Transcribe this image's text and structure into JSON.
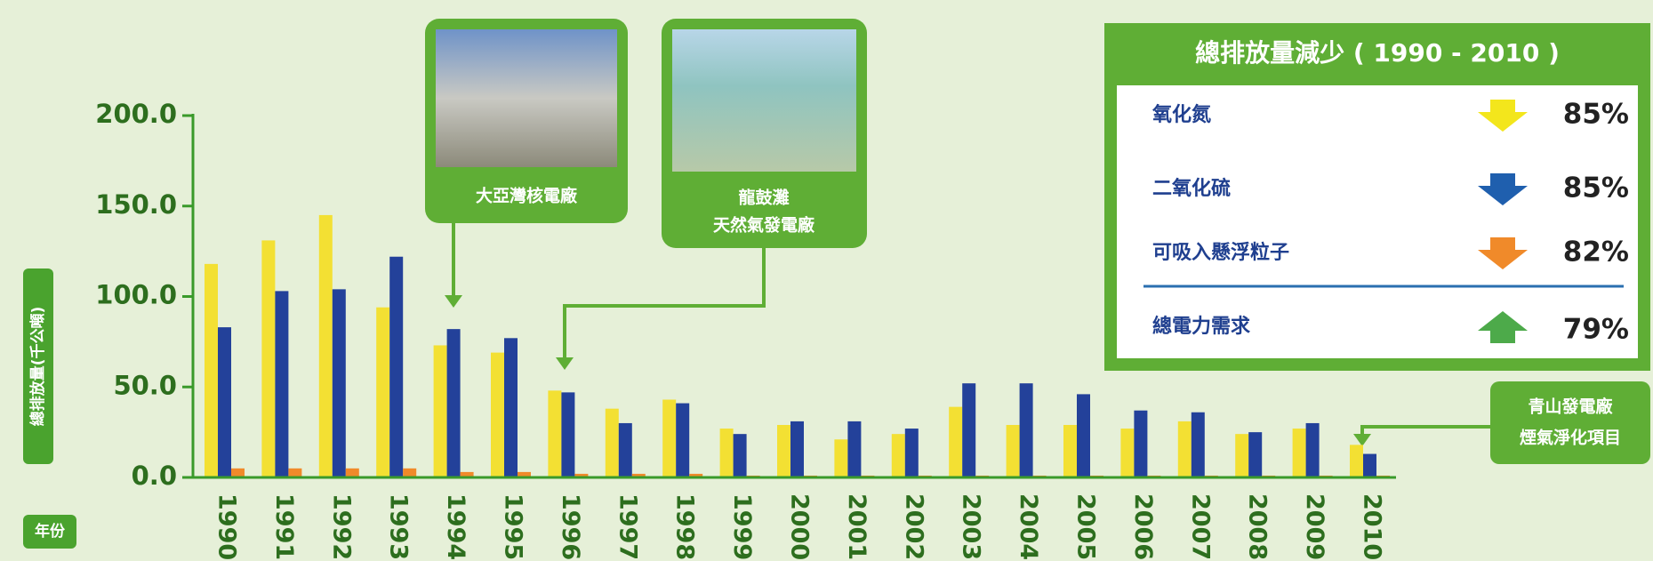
{
  "chart_data": {
    "type": "bar",
    "y_label": "總排放量(千公噸)",
    "x_label": "年份",
    "categories": [
      "1990",
      "1991",
      "1992",
      "1993",
      "1994",
      "1995",
      "1996",
      "1997",
      "1998",
      "1999",
      "2000",
      "2001",
      "2002",
      "2003",
      "2004",
      "2005",
      "2006",
      "2007",
      "2008",
      "2009",
      "2010"
    ],
    "series": [
      {
        "color": "#f3e033",
        "values": [
          118,
          131,
          145,
          94,
          73,
          69,
          48,
          38,
          43,
          27,
          29,
          21,
          24,
          39,
          29,
          29,
          27,
          31,
          24,
          27,
          18
        ]
      },
      {
        "color": "#23419a",
        "values": [
          83,
          103,
          104,
          122,
          82,
          77,
          47,
          30,
          41,
          24,
          31,
          31,
          27,
          52,
          52,
          46,
          37,
          36,
          25,
          30,
          13
        ]
      },
      {
        "color": "#f08a2a",
        "values": [
          5,
          5,
          5,
          5,
          3,
          3,
          2,
          2,
          2,
          1,
          1,
          1,
          1,
          1,
          1,
          1,
          1,
          1,
          1,
          1,
          1
        ]
      }
    ],
    "ylim": [
      0,
      200
    ],
    "yticks": [
      {
        "value": 0,
        "label": "0.0"
      },
      {
        "value": 50,
        "label": "50.0"
      },
      {
        "value": 100,
        "label": "100.0"
      },
      {
        "value": 150,
        "label": "150.0"
      },
      {
        "value": 200,
        "label": "200.0"
      }
    ],
    "annotations": [
      {
        "lines": [
          "大亞灣核電廠"
        ]
      },
      {
        "lines": [
          "龍鼓灘",
          "天然氣發電廠"
        ]
      },
      {
        "lines": [
          "青山發電廠",
          "煙氣淨化項目"
        ]
      }
    ]
  },
  "summary": {
    "title": "總排放量減少 ( 1990 - 2010 )",
    "rows": [
      {
        "label": "氧化氮",
        "value": 85,
        "value_label": "85%",
        "direction": "down",
        "color": "#f3e61c"
      },
      {
        "label": "二氧化硫",
        "value": 85,
        "value_label": "85%",
        "direction": "down",
        "color": "#1f5fae"
      },
      {
        "label": "可吸入懸浮粒子",
        "value": 82,
        "value_label": "82%",
        "direction": "down",
        "color": "#f08a2a"
      },
      {
        "label": "總電力需求",
        "value": 79,
        "value_label": "79%",
        "direction": "up",
        "color": "#4daa4a"
      }
    ]
  }
}
